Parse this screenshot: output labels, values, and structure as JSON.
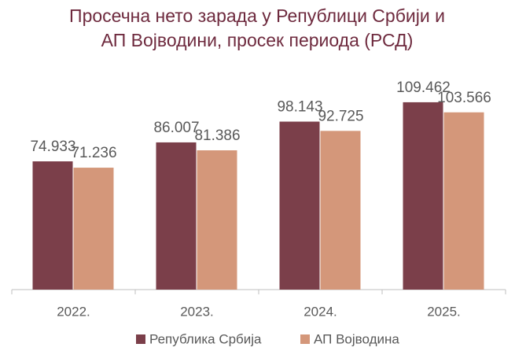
{
  "chart_data": {
    "type": "bar",
    "title": [
      "Просечна нето зарада у Републици Србији и",
      "АП Војводини, просек периода (РСД)"
    ],
    "categories": [
      "2022.",
      "2023.",
      "2024.",
      "2025."
    ],
    "series": [
      {
        "name": "Република Србија",
        "color": "#7b3f4a",
        "values": [
          74933,
          86007,
          98143,
          109462
        ],
        "value_labels": [
          "74.933",
          "86.007",
          "98.143",
          "109.462"
        ]
      },
      {
        "name": "АП Војводина",
        "color": "#d4977a",
        "values": [
          71236,
          81386,
          92725,
          103566
        ],
        "value_labels": [
          "71.236",
          "81.386",
          "92.725",
          "103.566"
        ]
      }
    ],
    "ylim": [
      0,
      120000
    ],
    "legend": "bottom"
  }
}
